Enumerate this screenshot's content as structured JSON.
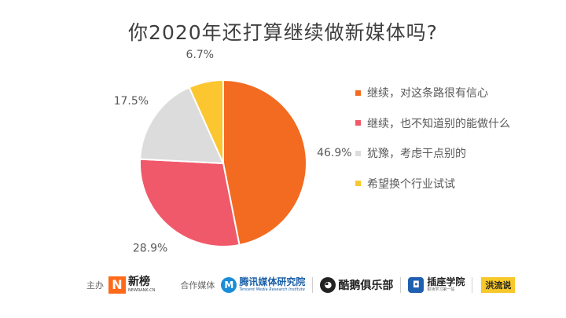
{
  "title": "你2020年还打算继续做新媒体吗?",
  "chart_data": {
    "type": "pie",
    "start_angle_deg": 0,
    "direction": "clockwise",
    "slices": [
      {
        "label": "继续，对这条路很有信心",
        "value": 46.9,
        "display": "46.9%",
        "color": "#f36b21"
      },
      {
        "label": "继续，也不知道别的能做什么",
        "value": 28.9,
        "display": "28.9%",
        "color": "#f0596a"
      },
      {
        "label": "犹豫，考虑干点别的",
        "value": 17.5,
        "display": "17.5%",
        "color": "#dcdcdc"
      },
      {
        "label": "希望换个行业试试",
        "value": 6.7,
        "display": "6.7%",
        "color": "#fbc62f"
      }
    ],
    "legend_position": "right"
  },
  "footer": {
    "host_label": "主办",
    "host_logo": {
      "text": "新榜",
      "subtext": "NEWRANK.CN",
      "mark": "N"
    },
    "partner_label": "合作媒体",
    "partners": [
      {
        "text": "腾讯媒体研究院",
        "subtext": "Tencent Media Research Institute",
        "mark": "M"
      },
      {
        "text": "酷鹅俱乐部",
        "mark": "◕"
      },
      {
        "text": "插座学院",
        "subtext": "职场学习第一站",
        "mark": "◘"
      },
      {
        "text": "洪流说"
      }
    ]
  }
}
